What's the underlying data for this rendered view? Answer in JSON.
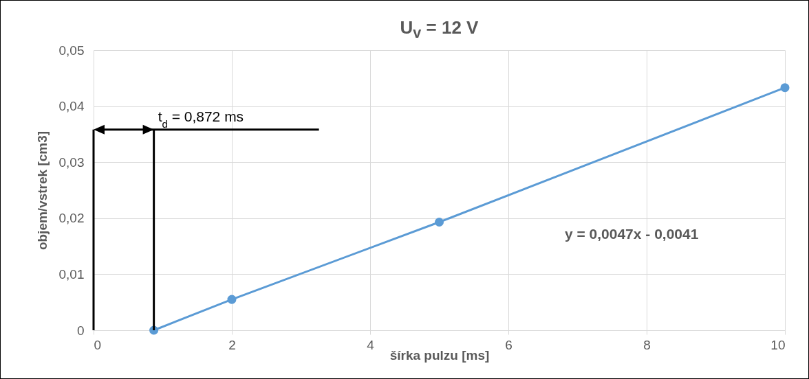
{
  "chart_data": {
    "type": "line",
    "title": "U$_{v}$ = 12 V",
    "xlabel": "šírka pulzu [ms]",
    "ylabel": "objem/vstrek [cm3]",
    "x": [
      0.872,
      2,
      5,
      10
    ],
    "series": [
      {
        "color": "#5b9bd5",
        "values": [
          0,
          0.0055,
          0.0193,
          0.0433
        ]
      }
    ],
    "xlim": [
      0,
      10
    ],
    "xticks": [
      0,
      2,
      4,
      6,
      8,
      10
    ],
    "ylim": [
      0,
      0.05
    ],
    "yticks": [
      0,
      {
        "value": 0.01,
        "label": "0,01"
      },
      {
        "value": 0.02,
        "label": "0,02"
      },
      {
        "value": 0.03,
        "label": "0,03"
      },
      {
        "value": 0.04,
        "label": "0,04"
      },
      {
        "value": 0.05,
        "label": "0,05"
      }
    ],
    "grid": true,
    "marker": "circle",
    "line_style": "solid",
    "annotations": [
      "y = 0,0047x - 0,0041",
      {
        "text": "t$_{d}$ = 0,872 ms",
        "x": 0.872,
        "y": 0
      }
    ]
  }
}
